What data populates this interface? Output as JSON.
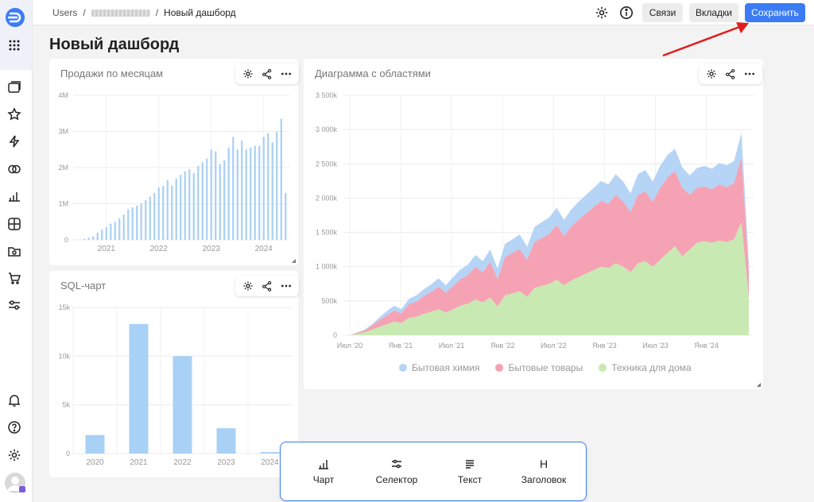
{
  "header": {
    "breadcrumb": {
      "root": "Users",
      "separator": "/",
      "current": "Новый дашборд"
    },
    "buttons": {
      "links": "Связи",
      "tabs": "Вкладки",
      "save": "Сохранить"
    }
  },
  "page_title": "Новый дашборд",
  "widgets": {
    "sales": {
      "title": "Продажи по месяцам"
    },
    "area": {
      "title": "Диаграмма с областями"
    },
    "sql": {
      "title": "SQL-чарт"
    }
  },
  "add_panel": {
    "items": [
      {
        "label": "Чарт",
        "icon": "chart-icon"
      },
      {
        "label": "Селектор",
        "icon": "selector-icon"
      },
      {
        "label": "Текст",
        "icon": "text-icon"
      },
      {
        "label": "Заголовок",
        "icon": "heading-icon",
        "glyph": "H"
      }
    ]
  },
  "colors": {
    "accent": "#3b7cf5",
    "bar": "#a9d0f5",
    "series_chem": "#b5d4f6",
    "series_goods": "#f5a3b4",
    "series_tech": "#c9e9b3"
  },
  "chart_data": [
    {
      "type": "bar",
      "title": "Продажи по месяцам",
      "ytick_labels": [
        "0",
        "1M",
        "2M",
        "3M",
        "4M"
      ],
      "ylim": [
        0,
        4000000
      ],
      "xtick_labels": [
        "2021",
        "2022",
        "2023",
        "2024"
      ],
      "x_start": "2020-07",
      "values": [
        10000,
        30000,
        60000,
        100000,
        200000,
        280000,
        350000,
        450000,
        500000,
        600000,
        700000,
        850000,
        900000,
        950000,
        1000000,
        1100000,
        1200000,
        1300000,
        1450000,
        1500000,
        1650000,
        1500000,
        1700000,
        1800000,
        1900000,
        1950000,
        1850000,
        2050000,
        2150000,
        2250000,
        2500000,
        2450000,
        2100000,
        2200000,
        2550000,
        2850000,
        2500000,
        2750000,
        2500000,
        2550000,
        2600000,
        2600000,
        2850000,
        2950000,
        2700000,
        3000000,
        3350000,
        1300000
      ],
      "grid": true
    },
    {
      "type": "area",
      "title": "Диаграмма с областями",
      "stacked": true,
      "ytick_labels": [
        "0",
        "500k",
        "1 000k",
        "1 500k",
        "2 000k",
        "2 500k",
        "3 000k",
        "3 500k"
      ],
      "ylim": [
        0,
        3500000
      ],
      "xtick_labels": [
        "Июл '20",
        "Янв '21",
        "Июл '21",
        "Янв '22",
        "Июл '22",
        "Янв '23",
        "Июл '23",
        "Янв '24"
      ],
      "legend_position": "bottom",
      "series": [
        {
          "name": "Техника для дома",
          "color": "#c9e9b3",
          "values": [
            0,
            20000,
            40000,
            80000,
            120000,
            160000,
            200000,
            180000,
            250000,
            270000,
            310000,
            340000,
            380000,
            330000,
            380000,
            430000,
            460000,
            520000,
            480000,
            550000,
            420000,
            580000,
            610000,
            640000,
            560000,
            690000,
            720000,
            750000,
            810000,
            730000,
            800000,
            850000,
            900000,
            950000,
            1000000,
            980000,
            1050000,
            1000000,
            920000,
            1050000,
            1080000,
            1000000,
            1100000,
            1200000,
            1300000,
            1150000,
            1250000,
            1350000,
            1370000,
            1350000,
            1380000,
            1360000,
            1400000,
            1650000,
            550000
          ]
        },
        {
          "name": "Бытовые товары",
          "color": "#f5a3b4",
          "values": [
            0,
            15000,
            30000,
            60000,
            100000,
            130000,
            160000,
            140000,
            200000,
            220000,
            260000,
            290000,
            330000,
            290000,
            340000,
            390000,
            420000,
            480000,
            440000,
            520000,
            400000,
            560000,
            590000,
            620000,
            540000,
            670000,
            700000,
            730000,
            800000,
            720000,
            790000,
            840000,
            880000,
            920000,
            960000,
            940000,
            1000000,
            950000,
            880000,
            1000000,
            1020000,
            950000,
            1050000,
            1100000,
            1100000,
            1000000,
            800000,
            800000,
            800000,
            780000,
            820000,
            800000,
            820000,
            950000,
            400000
          ]
        },
        {
          "name": "Бытовая химия",
          "color": "#b5d4f6",
          "values": [
            0,
            5000,
            10000,
            20000,
            40000,
            60000,
            70000,
            60000,
            80000,
            90000,
            100000,
            110000,
            120000,
            110000,
            130000,
            140000,
            150000,
            170000,
            160000,
            180000,
            150000,
            190000,
            200000,
            210000,
            190000,
            220000,
            230000,
            240000,
            250000,
            230000,
            250000,
            260000,
            270000,
            280000,
            290000,
            280000,
            300000,
            290000,
            270000,
            300000,
            310000,
            290000,
            320000,
            330000,
            320000,
            300000,
            280000,
            290000,
            300000,
            300000,
            310000,
            320000,
            320000,
            350000,
            100000
          ]
        }
      ]
    },
    {
      "type": "bar",
      "title": "SQL-чарт",
      "categories": [
        "2020",
        "2021",
        "2022",
        "2023",
        "2024"
      ],
      "values": [
        1900,
        13300,
        10000,
        2600,
        150
      ],
      "ytick_labels": [
        "0",
        "5k",
        "10k",
        "15k"
      ],
      "ylim": [
        0,
        15000
      ],
      "grid": true
    }
  ]
}
